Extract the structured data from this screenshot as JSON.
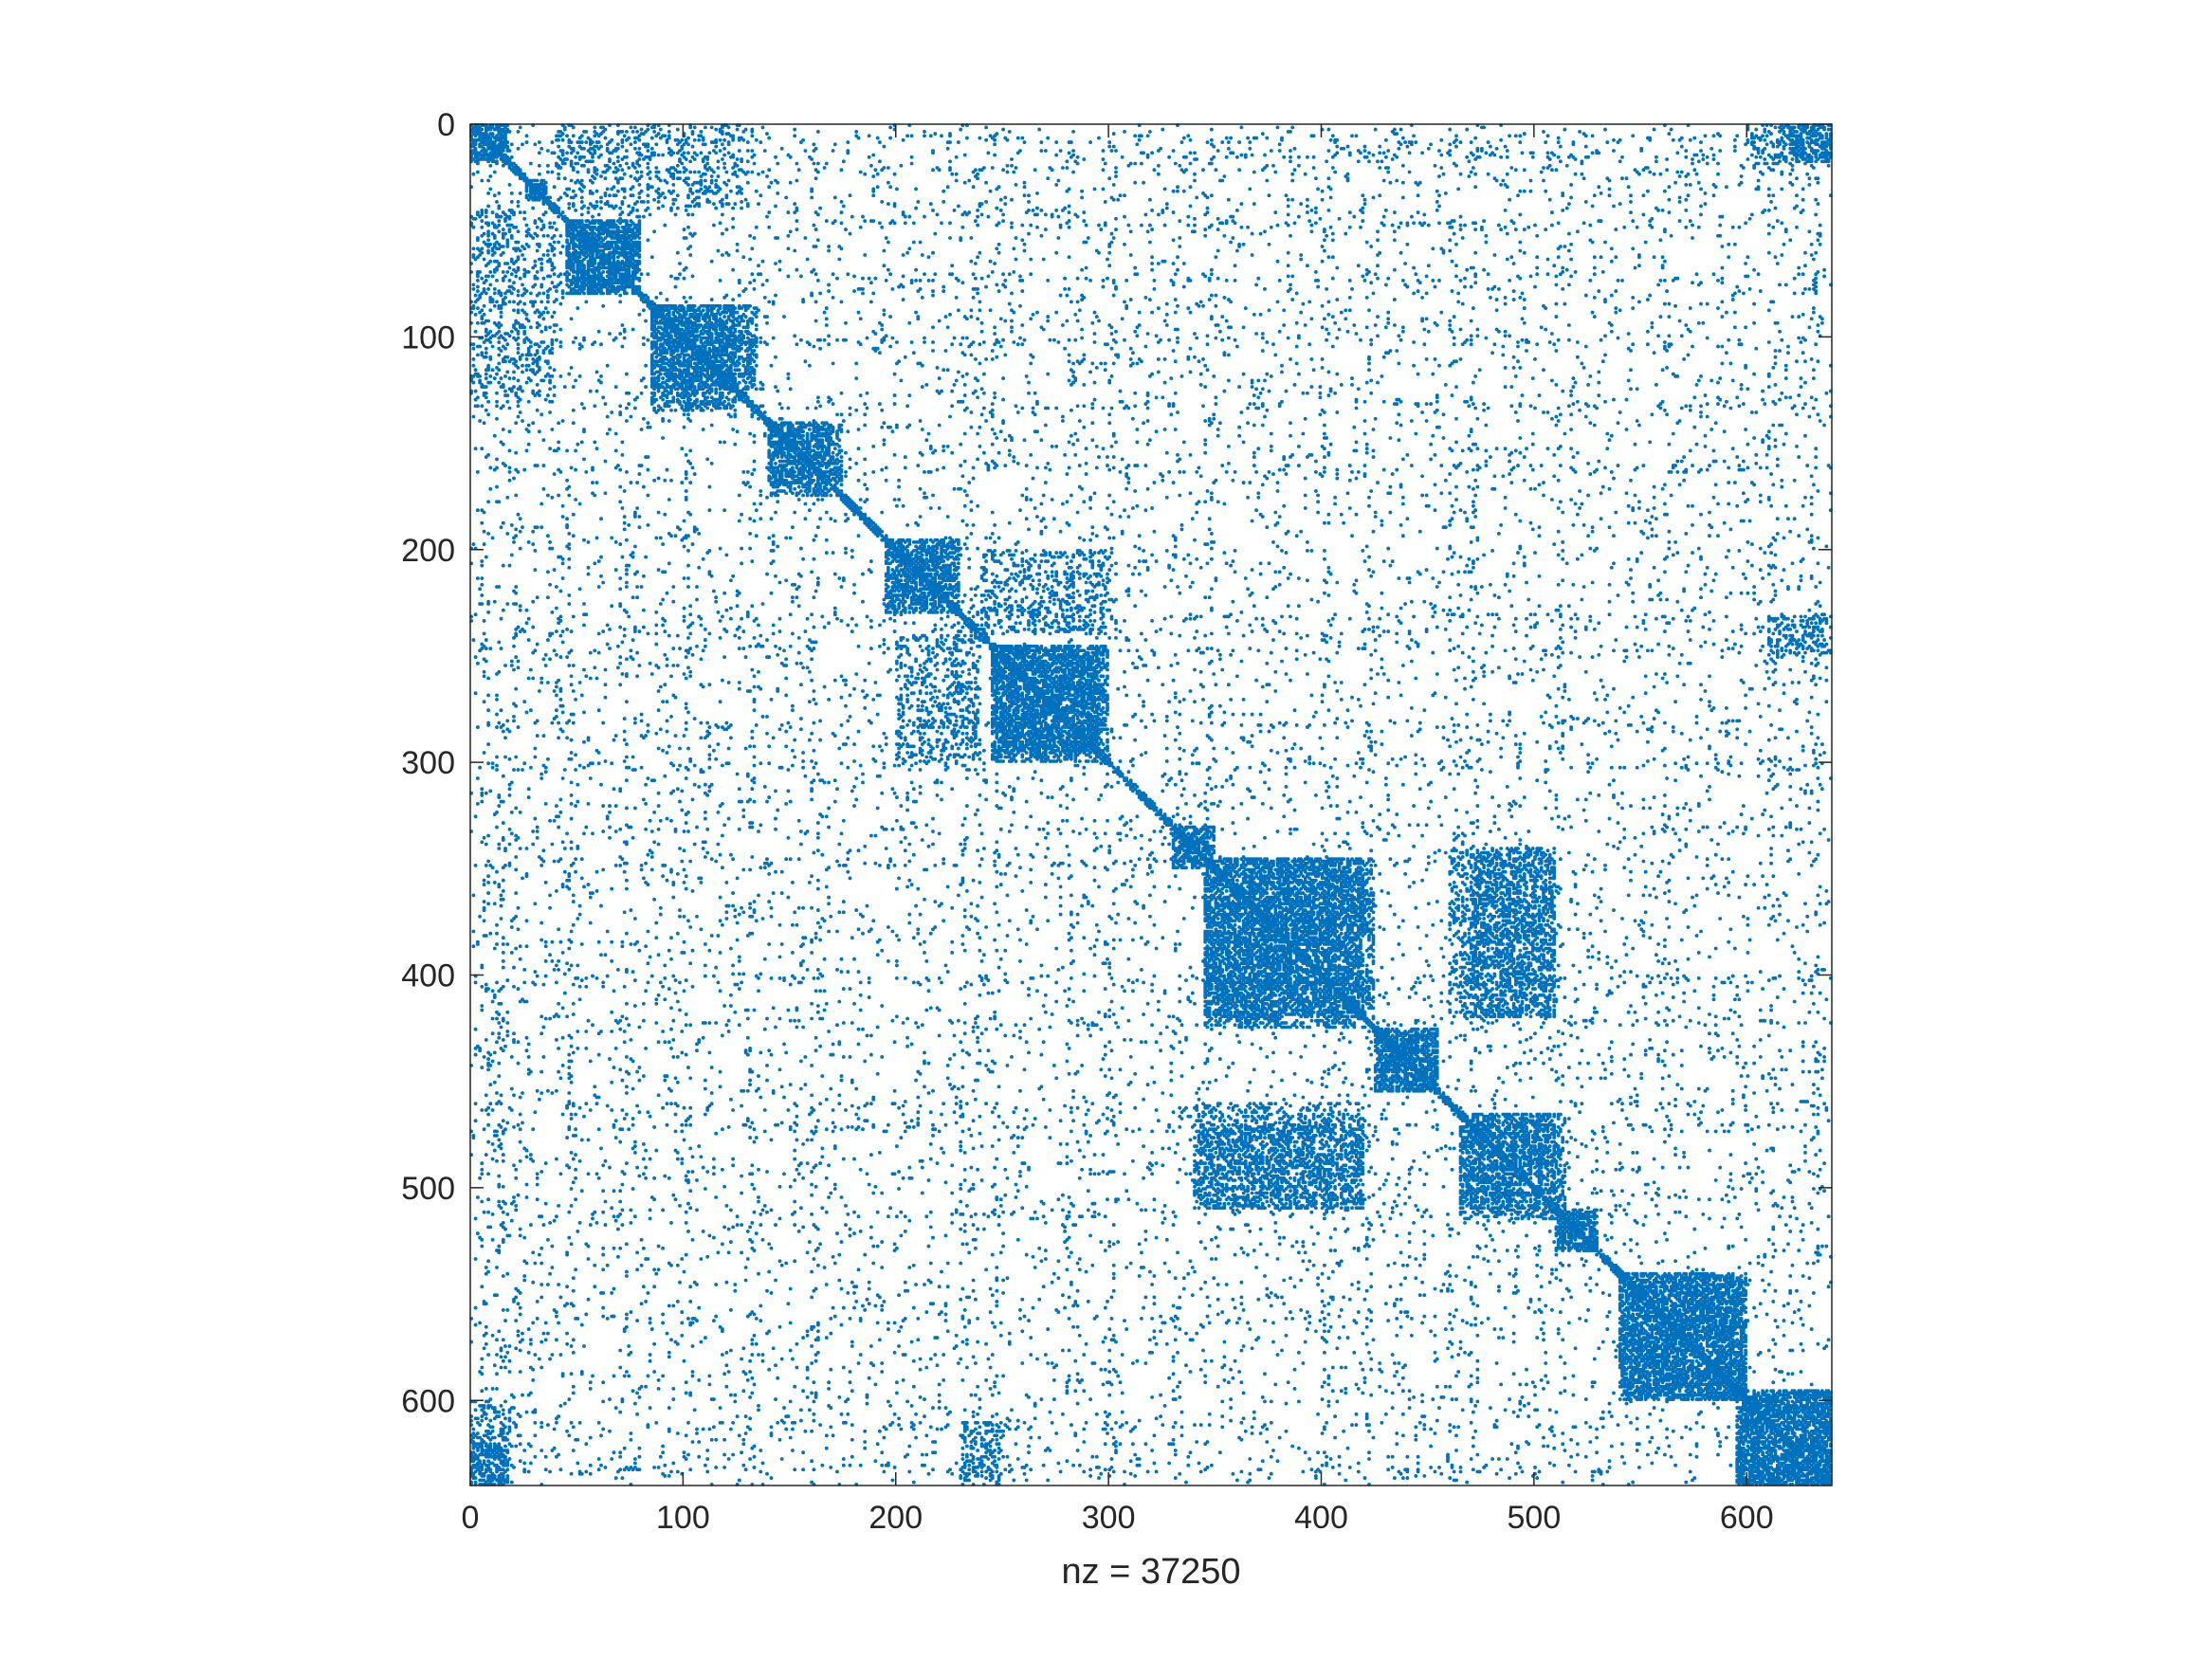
{
  "chart_data": {
    "type": "spy",
    "description_source": "sparsity pattern of a square matrix",
    "nz": 37250,
    "xlabel": "nz = 37250",
    "xlim": [
      0,
      640
    ],
    "ylim": [
      0,
      640
    ],
    "y_direction": "reverse",
    "x_ticks": [
      0,
      100,
      200,
      300,
      400,
      500,
      600
    ],
    "y_ticks": [
      0,
      100,
      200,
      300,
      400,
      500,
      600
    ],
    "x_tick_labels": [
      "0",
      "100",
      "200",
      "300",
      "400",
      "500",
      "600"
    ],
    "y_tick_labels": [
      "0",
      "100",
      "200",
      "300",
      "400",
      "500",
      "600"
    ],
    "grid": false,
    "marker_color": "#0072BD",
    "dense_blocks": [
      {
        "rows": [
          0,
          18
        ],
        "cols": [
          0,
          18
        ],
        "density": 0.75
      },
      {
        "rows": [
          0,
          18
        ],
        "cols": [
          620,
          640
        ],
        "density": 0.7
      },
      {
        "rows": [
          28,
          36
        ],
        "cols": [
          26,
          36
        ],
        "density": 0.95
      },
      {
        "rows": [
          45,
          80
        ],
        "cols": [
          45,
          80
        ],
        "density": 0.75
      },
      {
        "rows": [
          85,
          125
        ],
        "cols": [
          85,
          135
        ],
        "density": 0.7
      },
      {
        "rows": [
          140,
          170
        ],
        "cols": [
          140,
          175
        ],
        "density": 0.7
      },
      {
        "rows": [
          195,
          230
        ],
        "cols": [
          195,
          230
        ],
        "density": 0.55
      },
      {
        "rows": [
          245,
          295
        ],
        "cols": [
          245,
          300
        ],
        "density": 0.75
      },
      {
        "rows": [
          330,
          350
        ],
        "cols": [
          330,
          350
        ],
        "density": 0.6
      },
      {
        "rows": [
          345,
          420
        ],
        "cols": [
          345,
          425
        ],
        "density": 0.65
      },
      {
        "rows": [
          425,
          455
        ],
        "cols": [
          425,
          455
        ],
        "density": 0.75
      },
      {
        "rows": [
          465,
          510
        ],
        "cols": [
          465,
          515
        ],
        "density": 0.55
      },
      {
        "rows": [
          510,
          530
        ],
        "cols": [
          510,
          530
        ],
        "density": 0.7
      },
      {
        "rows": [
          540,
          600
        ],
        "cols": [
          540,
          600
        ],
        "density": 0.7
      },
      {
        "rows": [
          595,
          640
        ],
        "cols": [
          595,
          640
        ],
        "density": 0.75
      },
      {
        "rows": [
          40,
          130
        ],
        "cols": [
          0,
          40
        ],
        "density": 0.25
      },
      {
        "rows": [
          240,
          300
        ],
        "cols": [
          200,
          240
        ],
        "density": 0.3
      },
      {
        "rows": [
          340,
          420
        ],
        "cols": [
          460,
          510
        ],
        "density": 0.4
      },
      {
        "rows": [
          470,
          510
        ],
        "cols": [
          340,
          420
        ],
        "density": 0.45
      },
      {
        "rows": [
          610,
          640
        ],
        "cols": [
          230,
          250
        ],
        "density": 0.4
      },
      {
        "rows": [
          600,
          640
        ],
        "cols": [
          0,
          20
        ],
        "density": 0.35
      }
    ],
    "notes": "Scattered nonzeros appear throughout with strong vertical and horizontal stripes at columns/rows near 20, 40, 230, 330, 460, 510, 630"
  }
}
